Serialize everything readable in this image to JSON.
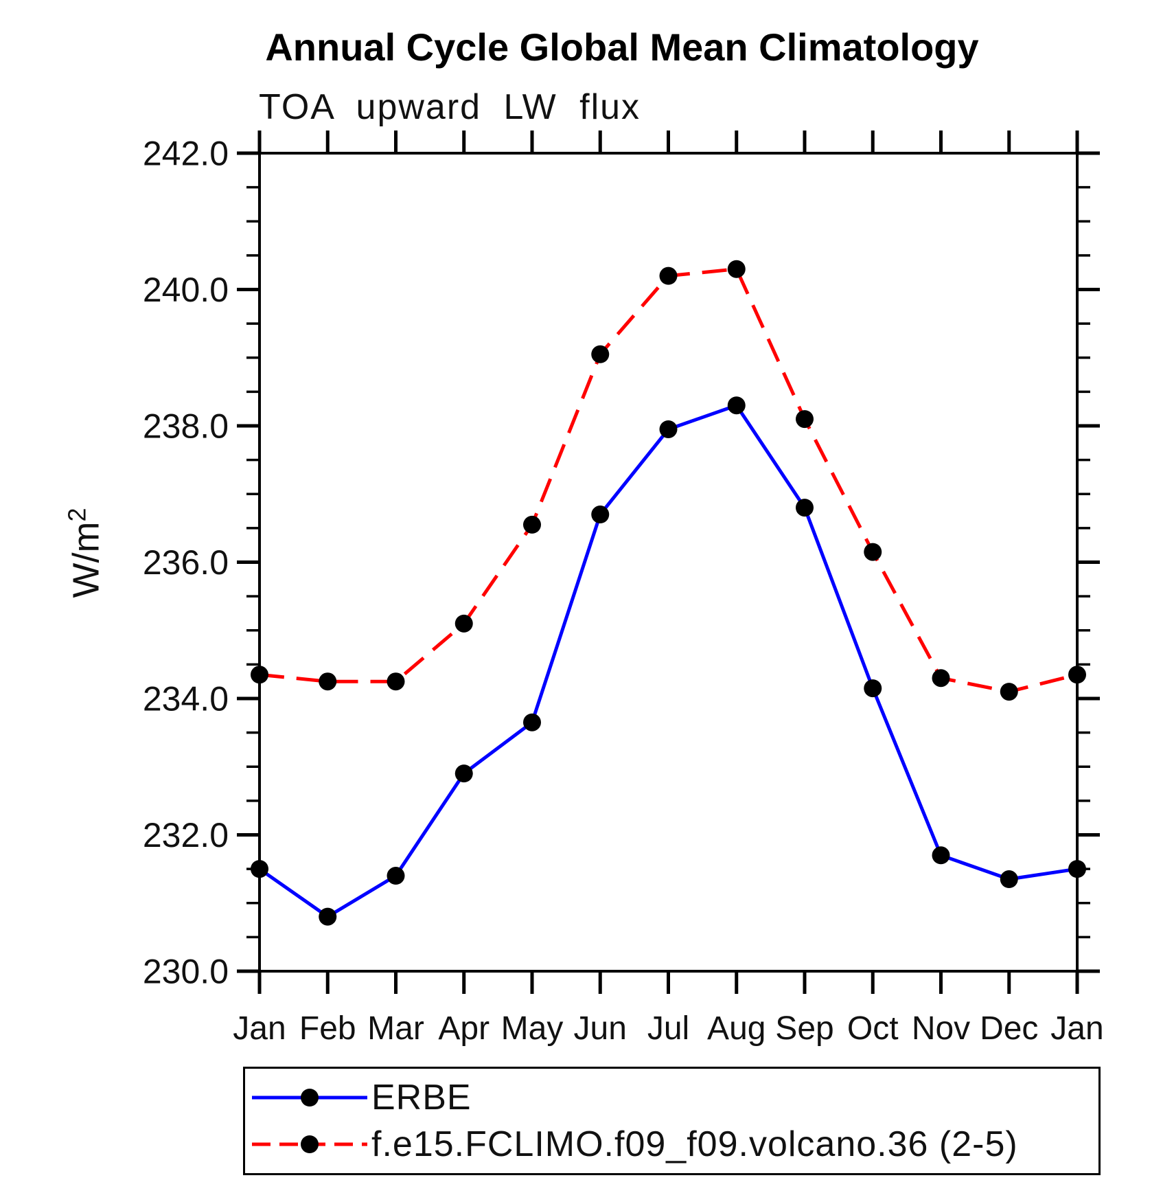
{
  "title": "Annual Cycle Global Mean Climatology",
  "subtitle": "TOA upward LW flux",
  "y_axis": {
    "unit_base": "W/m",
    "unit_exponent": "2",
    "tick_label_decimals": 1
  },
  "chart_data": {
    "type": "line",
    "title": "Annual Cycle Global Mean Climatology",
    "subtitle": "TOA upward LW flux",
    "ylabel": "W/m^2",
    "xlabel": "",
    "x_categories": [
      "Jan",
      "Feb",
      "Mar",
      "Apr",
      "May",
      "Jun",
      "Jul",
      "Aug",
      "Sep",
      "Oct",
      "Nov",
      "Dec",
      "Jan"
    ],
    "ylim": [
      230.0,
      242.0
    ],
    "y_major_tick_step": 2.0,
    "y_minor_tick_step": 0.5,
    "grid": false,
    "legend_position": "bottom-left-box",
    "frame_color": "#000000",
    "marker_color": "#000000",
    "series": [
      {
        "name": "ERBE",
        "line_style": "solid",
        "color": "#0000ff",
        "values": [
          231.5,
          230.8,
          231.4,
          232.9,
          233.65,
          236.7,
          237.95,
          238.3,
          236.8,
          234.15,
          231.7,
          231.35,
          231.5
        ]
      },
      {
        "name": "f.e15.FCLIMO.f09_f09.volcano.36 (2-5)",
        "line_style": "dashed",
        "color": "#ff0000",
        "values": [
          234.35,
          234.25,
          234.25,
          235.1,
          236.55,
          239.05,
          240.2,
          240.3,
          238.1,
          236.15,
          234.3,
          234.1,
          234.35
        ]
      }
    ]
  }
}
